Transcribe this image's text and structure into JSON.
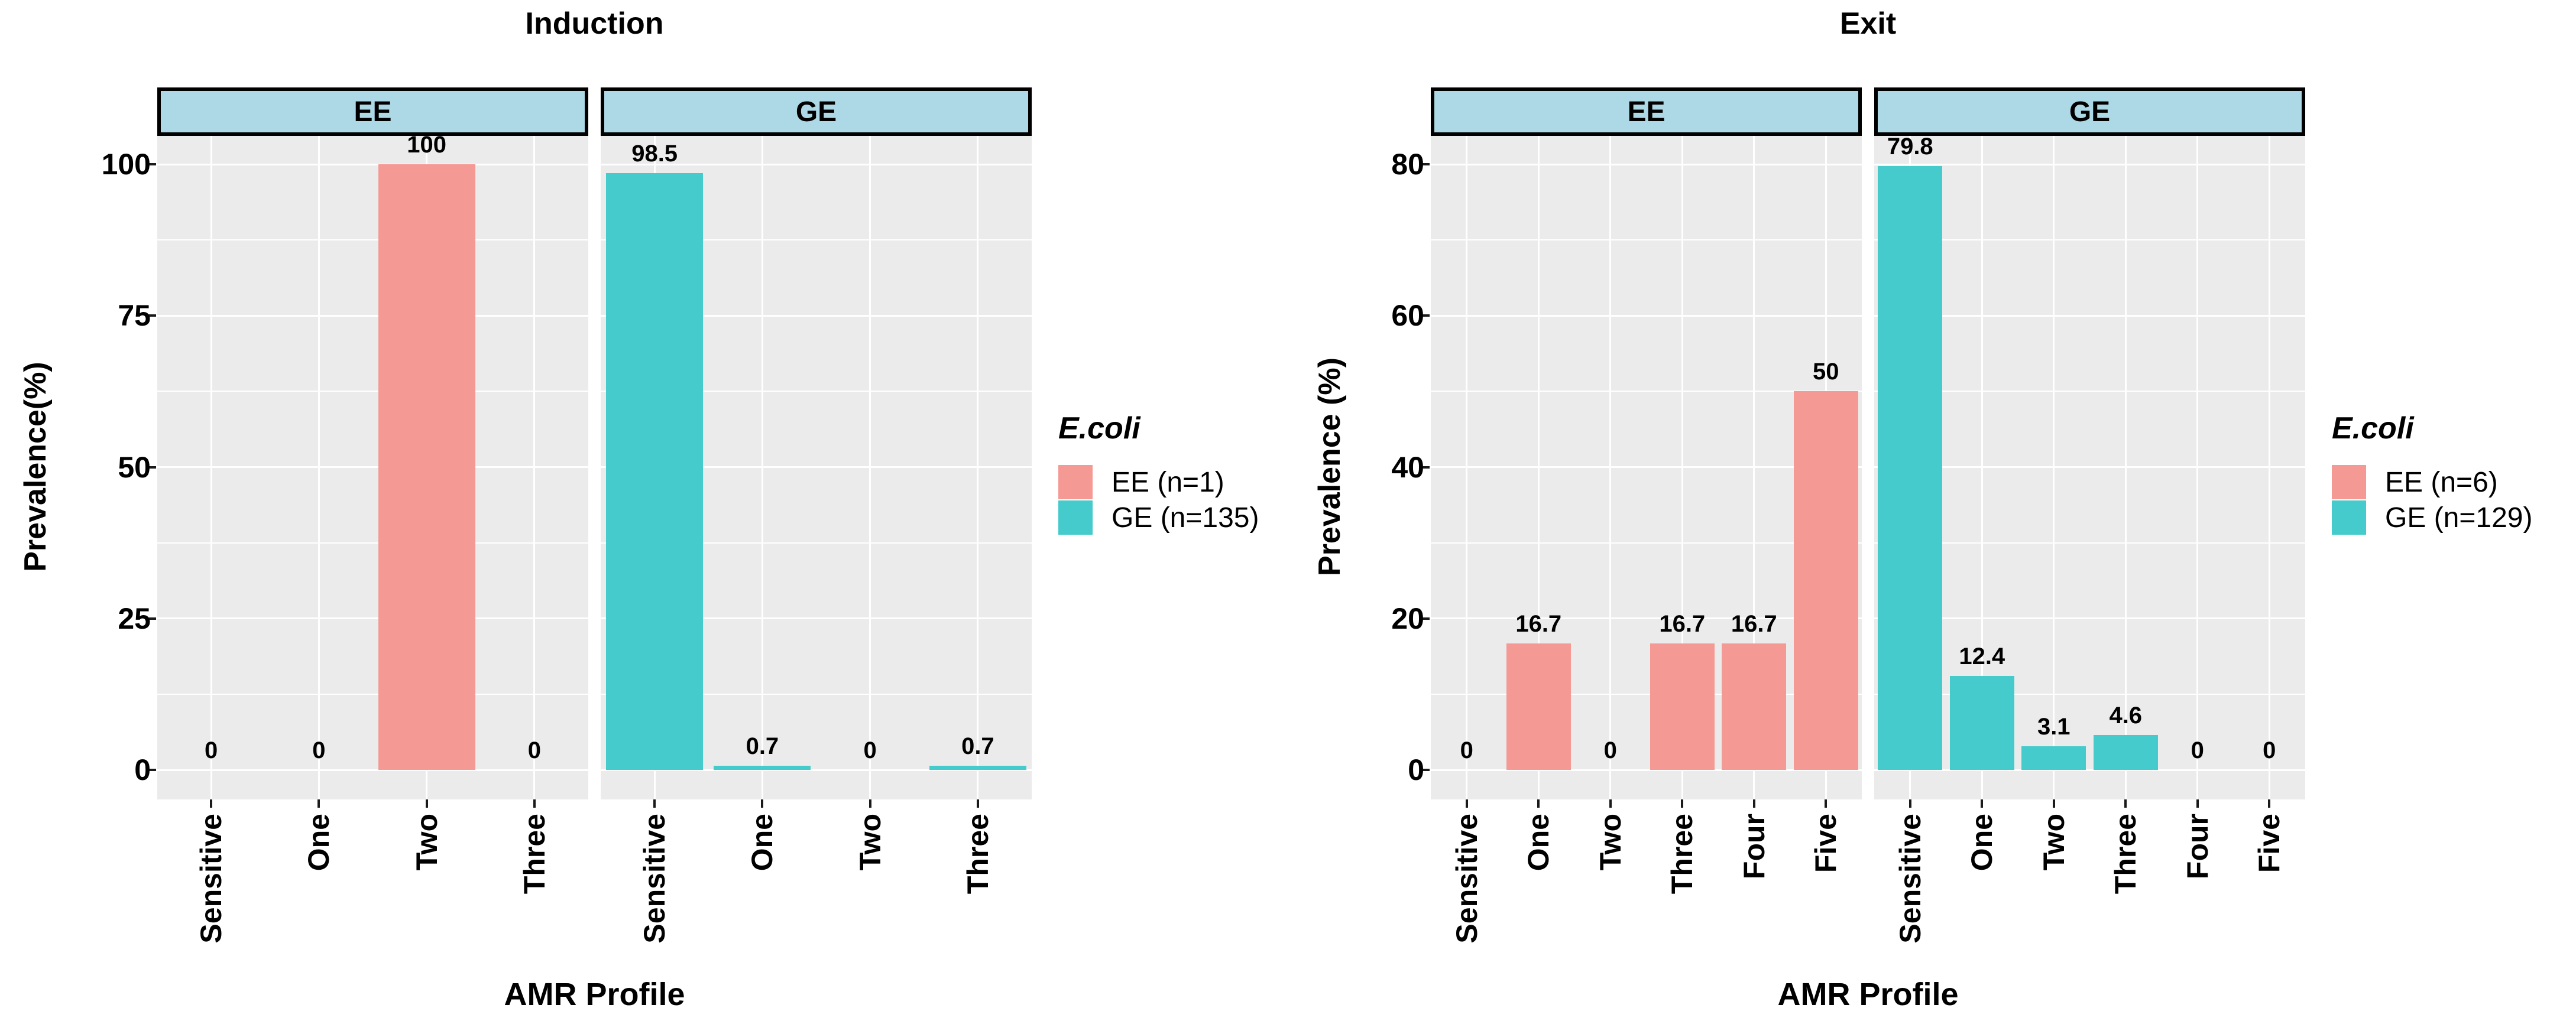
{
  "figure": {
    "background": "#FFFFFF",
    "panel_bg": "#EBEBEB",
    "grid_color": "#FFFFFF",
    "strip_bg": "#ADD8E6",
    "strip_border": "#000000",
    "tick_color": "#1A1A1A"
  },
  "chart_data": [
    {
      "type": "bar",
      "title": "Induction",
      "xlabel": "AMR Profile",
      "ylabel": "Prevalence(%)",
      "ylim": [
        0,
        100
      ],
      "yticks": [
        0,
        25,
        50,
        75,
        100
      ],
      "ytick_labels": [
        "0",
        "25",
        "50",
        "75",
        "100"
      ],
      "grid": "major and minor horizontal white lines, vertical line at each category, gray panel",
      "legend_position": "right",
      "legend": {
        "title": "E.coli",
        "entries": [
          {
            "label": "EE (n=1)",
            "color": "#F49994"
          },
          {
            "label": "GE (n=135)",
            "color": "#45CBCB"
          }
        ]
      },
      "facets": [
        {
          "label": "EE",
          "series": "EE (n=1)",
          "color": "#F49994",
          "categories": [
            "Sensitive",
            "One",
            "Two",
            "Three"
          ],
          "values": [
            0,
            0,
            100,
            0
          ],
          "value_labels": [
            "0",
            "0",
            "100",
            "0"
          ]
        },
        {
          "label": "GE",
          "series": "GE (n=135)",
          "color": "#45CBCB",
          "categories": [
            "Sensitive",
            "One",
            "Two",
            "Three"
          ],
          "values": [
            98.5,
            0.7,
            0,
            0.7
          ],
          "value_labels": [
            "98.5",
            "0.7",
            "0",
            "0.7"
          ]
        }
      ]
    },
    {
      "type": "bar",
      "title": "Exit",
      "xlabel": "AMR Profile",
      "ylabel": "Prevalence (%)",
      "ylim": [
        0,
        80
      ],
      "yticks": [
        0,
        20,
        40,
        60,
        80
      ],
      "ytick_labels": [
        "0",
        "20",
        "40",
        "60",
        "80"
      ],
      "grid": "major and minor horizontal white lines, vertical line at each category, gray panel",
      "legend_position": "right",
      "legend": {
        "title": "E.coli",
        "entries": [
          {
            "label": "EE (n=6)",
            "color": "#F49994"
          },
          {
            "label": "GE (n=129)",
            "color": "#45CBCB"
          }
        ]
      },
      "facets": [
        {
          "label": "EE",
          "series": "EE (n=6)",
          "color": "#F49994",
          "categories": [
            "Sensitive",
            "One",
            "Two",
            "Three",
            "Four",
            "Five"
          ],
          "values": [
            0,
            16.7,
            0,
            16.7,
            16.7,
            50
          ],
          "value_labels": [
            "0",
            "16.7",
            "0",
            "16.7",
            "16.7",
            "50"
          ]
        },
        {
          "label": "GE",
          "series": "GE (n=129)",
          "color": "#45CBCB",
          "categories": [
            "Sensitive",
            "One",
            "Two",
            "Three",
            "Four",
            "Five"
          ],
          "values": [
            79.8,
            12.4,
            3.1,
            4.6,
            0,
            0
          ],
          "value_labels": [
            "79.8",
            "12.4",
            "3.1",
            "4.6",
            "0",
            "0"
          ]
        }
      ]
    }
  ]
}
